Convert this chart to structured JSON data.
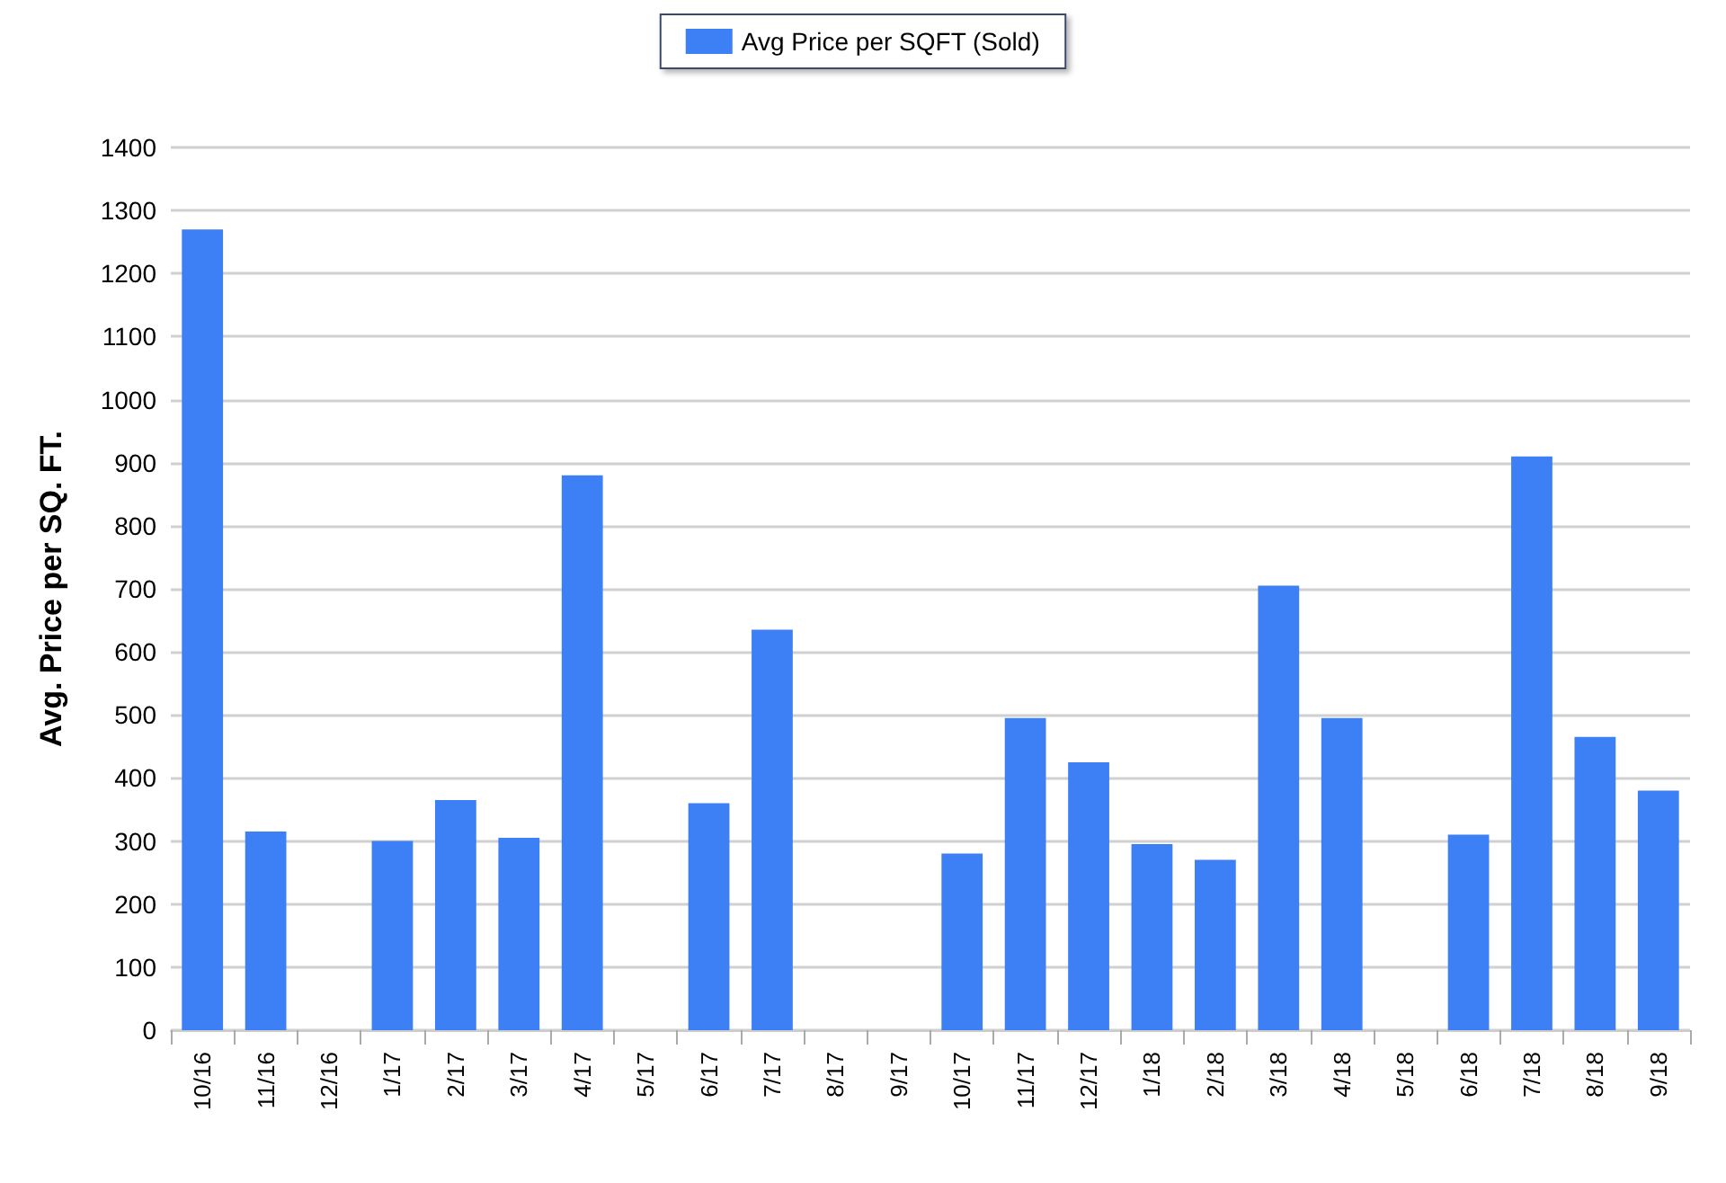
{
  "chart_data": {
    "type": "bar",
    "ylabel": "Avg. Price per SQ. FT.",
    "categories": [
      "10/16",
      "11/16",
      "12/16",
      "1/17",
      "2/17",
      "3/17",
      "4/17",
      "5/17",
      "6/17",
      "7/17",
      "8/17",
      "9/17",
      "10/17",
      "11/17",
      "12/17",
      "1/18",
      "2/18",
      "3/18",
      "4/18",
      "5/18",
      "6/18",
      "7/18",
      "8/18",
      "9/18"
    ],
    "series": [
      {
        "name": "Avg Price per SQFT (Sold)",
        "color": "#3d7ff5",
        "values": [
          1270,
          315,
          null,
          300,
          365,
          305,
          880,
          null,
          360,
          635,
          null,
          null,
          280,
          495,
          425,
          295,
          270,
          705,
          495,
          null,
          310,
          910,
          465,
          380
        ]
      }
    ],
    "ylim": [
      0,
      1400
    ],
    "yticks": [
      0,
      100,
      200,
      300,
      400,
      500,
      600,
      700,
      800,
      900,
      1000,
      1100,
      1200,
      1300,
      1400
    ],
    "grid": "y",
    "legend": "top"
  }
}
